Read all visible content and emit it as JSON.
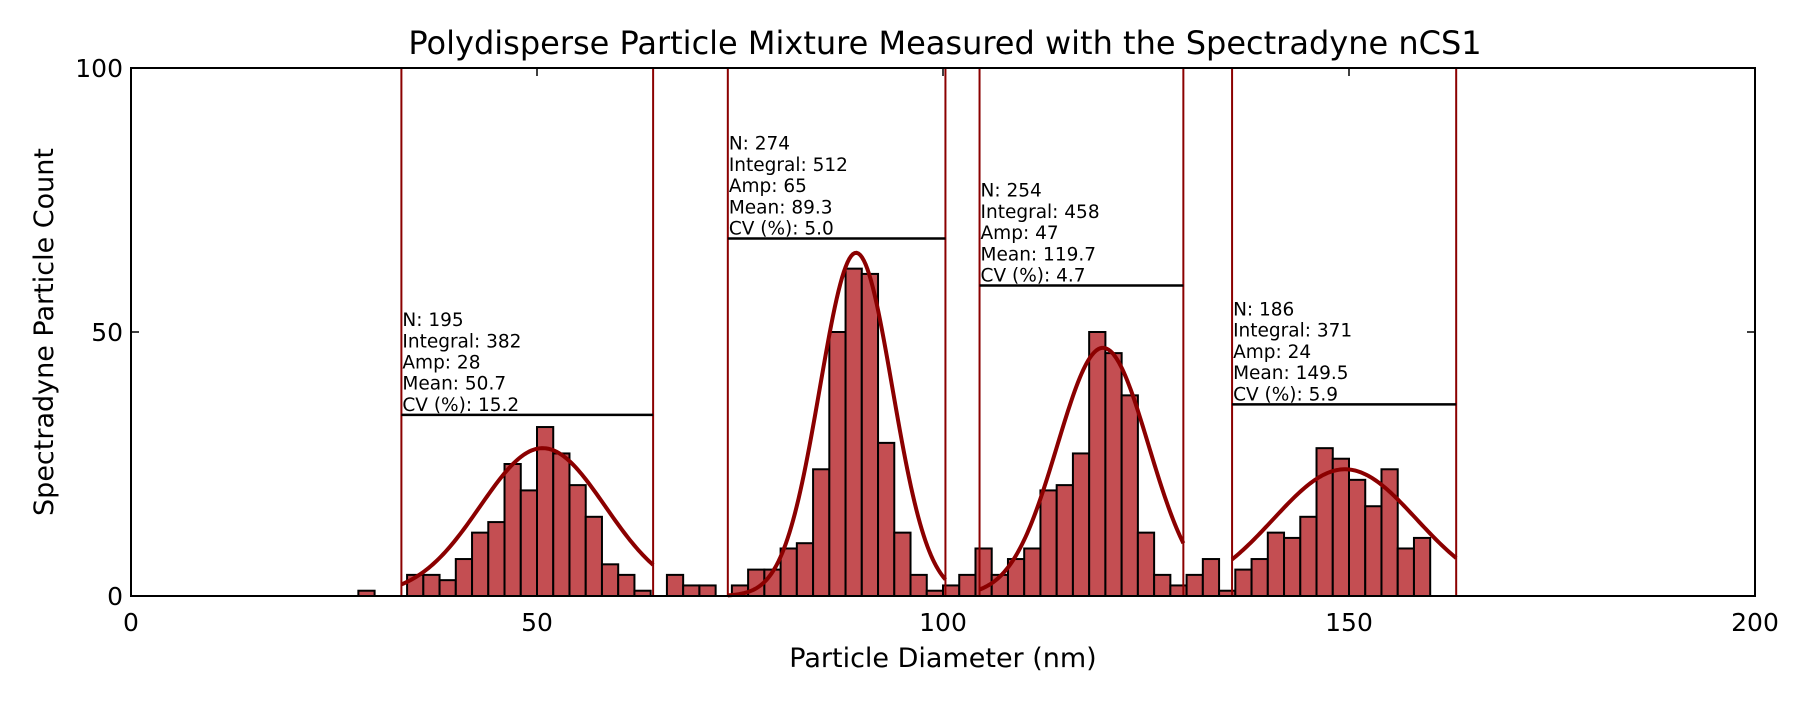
{
  "chart_data": {
    "type": "bar",
    "title": "Polydisperse Particle Mixture Measured with the Spectradyne nCS1",
    "xlabel": "Particle Diameter (nm)",
    "ylabel": "Spectradyne Particle Count",
    "xlim": [
      0,
      200
    ],
    "ylim": [
      0,
      100
    ],
    "xticks": [
      "0",
      "50",
      "100",
      "150",
      "200"
    ],
    "yticks": [
      "0",
      "50",
      "100"
    ],
    "grid": false,
    "legend": "none",
    "colors": {
      "bar": "#c44e52",
      "fit": "#8b0000",
      "roi": "#8b0000"
    },
    "bin_width": 2,
    "histogram": [
      {
        "x": 28,
        "y": 1
      },
      {
        "x": 34,
        "y": 4
      },
      {
        "x": 36,
        "y": 4
      },
      {
        "x": 38,
        "y": 3
      },
      {
        "x": 40,
        "y": 7
      },
      {
        "x": 42,
        "y": 12
      },
      {
        "x": 44,
        "y": 14
      },
      {
        "x": 46,
        "y": 25
      },
      {
        "x": 48,
        "y": 20
      },
      {
        "x": 50,
        "y": 32
      },
      {
        "x": 52,
        "y": 27
      },
      {
        "x": 54,
        "y": 21
      },
      {
        "x": 56,
        "y": 15
      },
      {
        "x": 58,
        "y": 6
      },
      {
        "x": 60,
        "y": 4
      },
      {
        "x": 62,
        "y": 1
      },
      {
        "x": 66,
        "y": 4
      },
      {
        "x": 68,
        "y": 2
      },
      {
        "x": 70,
        "y": 2
      },
      {
        "x": 74,
        "y": 2
      },
      {
        "x": 76,
        "y": 5
      },
      {
        "x": 78,
        "y": 5
      },
      {
        "x": 80,
        "y": 9
      },
      {
        "x": 82,
        "y": 10
      },
      {
        "x": 84,
        "y": 24
      },
      {
        "x": 86,
        "y": 50
      },
      {
        "x": 88,
        "y": 62
      },
      {
        "x": 90,
        "y": 61
      },
      {
        "x": 92,
        "y": 29
      },
      {
        "x": 94,
        "y": 12
      },
      {
        "x": 96,
        "y": 4
      },
      {
        "x": 98,
        "y": 1
      },
      {
        "x": 100,
        "y": 2
      },
      {
        "x": 102,
        "y": 4
      },
      {
        "x": 104,
        "y": 9
      },
      {
        "x": 106,
        "y": 4
      },
      {
        "x": 108,
        "y": 7
      },
      {
        "x": 110,
        "y": 9
      },
      {
        "x": 112,
        "y": 20
      },
      {
        "x": 114,
        "y": 21
      },
      {
        "x": 116,
        "y": 27
      },
      {
        "x": 118,
        "y": 50
      },
      {
        "x": 120,
        "y": 46
      },
      {
        "x": 122,
        "y": 38
      },
      {
        "x": 124,
        "y": 12
      },
      {
        "x": 126,
        "y": 4
      },
      {
        "x": 128,
        "y": 2
      },
      {
        "x": 130,
        "y": 4
      },
      {
        "x": 132,
        "y": 7
      },
      {
        "x": 134,
        "y": 1
      },
      {
        "x": 136,
        "y": 5
      },
      {
        "x": 138,
        "y": 7
      },
      {
        "x": 140,
        "y": 12
      },
      {
        "x": 142,
        "y": 11
      },
      {
        "x": 144,
        "y": 15
      },
      {
        "x": 146,
        "y": 28
      },
      {
        "x": 148,
        "y": 26
      },
      {
        "x": 150,
        "y": 22
      },
      {
        "x": 152,
        "y": 17
      },
      {
        "x": 154,
        "y": 24
      },
      {
        "x": 156,
        "y": 9
      },
      {
        "x": 158,
        "y": 11
      }
    ],
    "fits": [
      {
        "range": [
          33.3,
          64.3
        ],
        "N": "195",
        "integral": "382",
        "amp": 28,
        "mean": 50.7,
        "cv": 15.2,
        "lines": [
          "N: 195",
          "Integral: 382",
          "Amp: 28",
          "Mean: 50.7",
          "CV (%): 15.2"
        ],
        "level": 34.3
      },
      {
        "range": [
          73.5,
          100.3
        ],
        "N": "274",
        "integral": "512",
        "amp": 65,
        "mean": 89.3,
        "cv": 5.0,
        "lines": [
          "N: 274",
          "Integral: 512",
          "Amp: 65",
          "Mean: 89.3",
          "CV (%): 5.0"
        ],
        "level": 67.7
      },
      {
        "range": [
          104.5,
          129.6
        ],
        "N": "254",
        "integral": "458",
        "amp": 47,
        "mean": 119.7,
        "cv": 4.7,
        "lines": [
          "N: 254",
          "Integral: 458",
          "Amp: 47",
          "Mean: 119.7",
          "CV (%): 4.7"
        ],
        "level": 58.8
      },
      {
        "range": [
          135.6,
          163.2
        ],
        "N": "186",
        "integral": "371",
        "amp": 24,
        "mean": 149.5,
        "cv": 5.9,
        "lines": [
          "N: 186",
          "Integral: 371",
          "Amp: 24",
          "Mean: 149.5",
          "CV (%): 5.9"
        ],
        "level": 36.3
      }
    ]
  }
}
